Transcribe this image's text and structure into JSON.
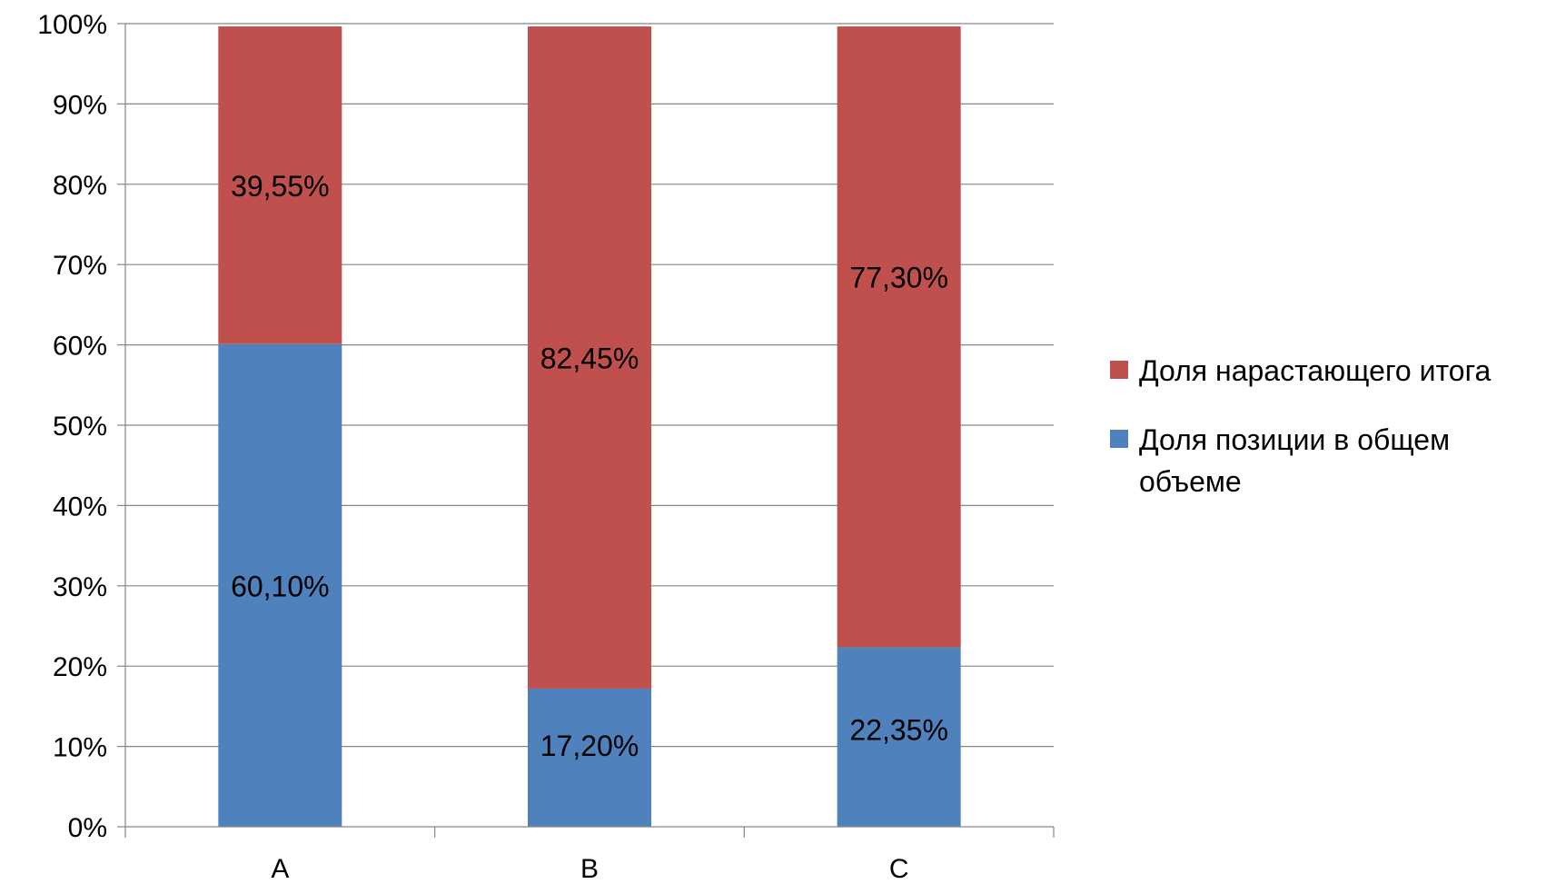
{
  "chart_data": {
    "type": "bar",
    "stacked": true,
    "categories": [
      "A",
      "B",
      "C"
    ],
    "series": [
      {
        "name": "Доля позиции в общем объеме",
        "values": [
          60.1,
          17.2,
          22.35
        ],
        "labels": [
          "60,10%",
          "17,20%",
          "22,35%"
        ],
        "color": "#4F81BD"
      },
      {
        "name": "Доля нарастающего итога",
        "values": [
          39.55,
          82.45,
          77.3
        ],
        "labels": [
          "39,55%",
          "82,45%",
          "77,30%"
        ],
        "color": "#C0504D"
      }
    ],
    "y_ticks": [
      "0%",
      "10%",
      "20%",
      "30%",
      "40%",
      "50%",
      "60%",
      "70%",
      "80%",
      "90%",
      "100%"
    ],
    "ylim": [
      0,
      100
    ],
    "grid": true,
    "legend_position": "right",
    "legend": [
      {
        "label": "Доля нарастающего итога",
        "color": "#C0504D"
      },
      {
        "label": "Доля позиции в общем объеме",
        "color": "#4F81BD"
      }
    ],
    "title": "",
    "xlabel": "",
    "ylabel": ""
  }
}
